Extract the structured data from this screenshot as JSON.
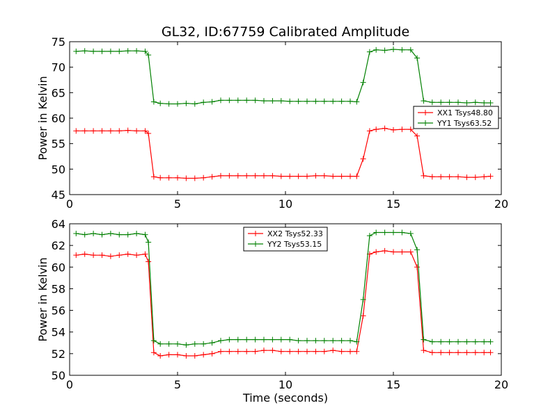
{
  "chart_data": [
    {
      "type": "line",
      "title": "GL32, ID:67759 Calibrated Amplitude",
      "xlabel": "",
      "ylabel": "Power in Kelvin",
      "xlim": [
        0,
        20
      ],
      "ylim": [
        45,
        75
      ],
      "xticks": [
        0,
        5,
        10,
        15,
        20
      ],
      "yticks": [
        45,
        50,
        55,
        60,
        65,
        70,
        75
      ],
      "legend_position": "center-right",
      "grid": false,
      "series": [
        {
          "name": "XX1 Tsys48.80",
          "color": "#ff0000",
          "x": [
            0.3,
            0.7,
            1.1,
            1.5,
            1.9,
            2.3,
            2.7,
            3.1,
            3.5,
            3.65,
            3.9,
            4.2,
            4.6,
            5.0,
            5.4,
            5.8,
            6.2,
            6.6,
            7.0,
            7.4,
            7.8,
            8.2,
            8.6,
            9.0,
            9.4,
            9.8,
            10.2,
            10.6,
            11.0,
            11.4,
            11.8,
            12.2,
            12.6,
            13.0,
            13.3,
            13.6,
            13.9,
            14.2,
            14.6,
            15.0,
            15.4,
            15.8,
            16.1,
            16.4,
            16.8,
            17.2,
            17.6,
            18.0,
            18.4,
            18.8,
            19.2,
            19.5
          ],
          "y": [
            57.5,
            57.5,
            57.5,
            57.5,
            57.5,
            57.5,
            57.6,
            57.5,
            57.5,
            57.0,
            48.5,
            48.3,
            48.3,
            48.3,
            48.2,
            48.2,
            48.3,
            48.5,
            48.7,
            48.7,
            48.7,
            48.7,
            48.7,
            48.7,
            48.7,
            48.6,
            48.6,
            48.6,
            48.6,
            48.7,
            48.7,
            48.6,
            48.6,
            48.6,
            48.6,
            52.0,
            57.5,
            57.8,
            58.0,
            57.7,
            57.8,
            57.8,
            56.5,
            48.7,
            48.5,
            48.5,
            48.5,
            48.5,
            48.4,
            48.4,
            48.5,
            48.6
          ]
        },
        {
          "name": "YY1 Tsys63.52",
          "color": "#008000",
          "x": [
            0.3,
            0.7,
            1.1,
            1.5,
            1.9,
            2.3,
            2.7,
            3.1,
            3.5,
            3.65,
            3.9,
            4.2,
            4.6,
            5.0,
            5.4,
            5.8,
            6.2,
            6.6,
            7.0,
            7.4,
            7.8,
            8.2,
            8.6,
            9.0,
            9.4,
            9.8,
            10.2,
            10.6,
            11.0,
            11.4,
            11.8,
            12.2,
            12.6,
            13.0,
            13.3,
            13.6,
            13.9,
            14.2,
            14.6,
            15.0,
            15.4,
            15.8,
            16.1,
            16.4,
            16.8,
            17.2,
            17.6,
            18.0,
            18.4,
            18.8,
            19.2,
            19.5
          ],
          "y": [
            73.1,
            73.2,
            73.1,
            73.1,
            73.1,
            73.1,
            73.2,
            73.2,
            73.1,
            72.4,
            63.2,
            62.9,
            62.8,
            62.8,
            62.9,
            62.8,
            63.1,
            63.2,
            63.5,
            63.5,
            63.5,
            63.5,
            63.5,
            63.4,
            63.4,
            63.4,
            63.3,
            63.3,
            63.3,
            63.3,
            63.3,
            63.3,
            63.3,
            63.3,
            63.2,
            67.0,
            73.0,
            73.4,
            73.3,
            73.5,
            73.4,
            73.4,
            71.8,
            63.4,
            63.1,
            63.1,
            63.1,
            63.1,
            63.0,
            63.1,
            63.0,
            63.0
          ]
        }
      ]
    },
    {
      "type": "line",
      "title": "",
      "xlabel": "Time (seconds)",
      "ylabel": "Power in Kelvin",
      "xlim": [
        0,
        20
      ],
      "ylim": [
        50,
        64
      ],
      "xticks": [
        0,
        5,
        10,
        15,
        20
      ],
      "yticks": [
        50,
        52,
        54,
        56,
        58,
        60,
        62,
        64
      ],
      "legend_position": "upper-center",
      "grid": false,
      "series": [
        {
          "name": "XX2 Tsys52.33",
          "color": "#ff0000",
          "x": [
            0.3,
            0.7,
            1.1,
            1.5,
            1.9,
            2.3,
            2.7,
            3.1,
            3.5,
            3.65,
            3.9,
            4.2,
            4.6,
            5.0,
            5.4,
            5.8,
            6.2,
            6.6,
            7.0,
            7.4,
            7.8,
            8.2,
            8.6,
            9.0,
            9.4,
            9.8,
            10.2,
            10.6,
            11.0,
            11.4,
            11.8,
            12.2,
            12.6,
            13.0,
            13.3,
            13.6,
            13.9,
            14.2,
            14.6,
            15.0,
            15.4,
            15.8,
            16.1,
            16.4,
            16.8,
            17.2,
            17.6,
            18.0,
            18.4,
            18.8,
            19.2,
            19.5
          ],
          "y": [
            61.1,
            61.2,
            61.1,
            61.1,
            61.0,
            61.1,
            61.2,
            61.1,
            61.2,
            60.5,
            52.1,
            51.8,
            51.9,
            51.9,
            51.8,
            51.8,
            51.9,
            52.0,
            52.2,
            52.2,
            52.2,
            52.2,
            52.2,
            52.3,
            52.3,
            52.2,
            52.2,
            52.2,
            52.2,
            52.2,
            52.2,
            52.3,
            52.2,
            52.2,
            52.2,
            55.5,
            61.2,
            61.4,
            61.5,
            61.4,
            61.4,
            61.4,
            60.0,
            52.3,
            52.1,
            52.1,
            52.1,
            52.1,
            52.1,
            52.1,
            52.1,
            52.1
          ]
        },
        {
          "name": "YY2 Tsys53.15",
          "color": "#008000",
          "x": [
            0.3,
            0.7,
            1.1,
            1.5,
            1.9,
            2.3,
            2.7,
            3.1,
            3.5,
            3.65,
            3.9,
            4.2,
            4.6,
            5.0,
            5.4,
            5.8,
            6.2,
            6.6,
            7.0,
            7.4,
            7.8,
            8.2,
            8.6,
            9.0,
            9.4,
            9.8,
            10.2,
            10.6,
            11.0,
            11.4,
            11.8,
            12.2,
            12.6,
            13.0,
            13.3,
            13.6,
            13.9,
            14.2,
            14.6,
            15.0,
            15.4,
            15.8,
            16.1,
            16.4,
            16.8,
            17.2,
            17.6,
            18.0,
            18.4,
            18.8,
            19.2,
            19.5
          ],
          "y": [
            63.1,
            63.0,
            63.1,
            63.0,
            63.1,
            63.0,
            63.0,
            63.1,
            63.0,
            62.3,
            53.2,
            52.9,
            52.9,
            52.9,
            52.8,
            52.9,
            52.9,
            53.0,
            53.2,
            53.3,
            53.3,
            53.3,
            53.3,
            53.3,
            53.3,
            53.3,
            53.3,
            53.2,
            53.2,
            53.2,
            53.2,
            53.2,
            53.2,
            53.2,
            53.1,
            57.0,
            62.9,
            63.2,
            63.2,
            63.2,
            63.2,
            63.1,
            61.6,
            53.3,
            53.1,
            53.1,
            53.1,
            53.1,
            53.1,
            53.1,
            53.1,
            53.1
          ]
        }
      ]
    }
  ]
}
